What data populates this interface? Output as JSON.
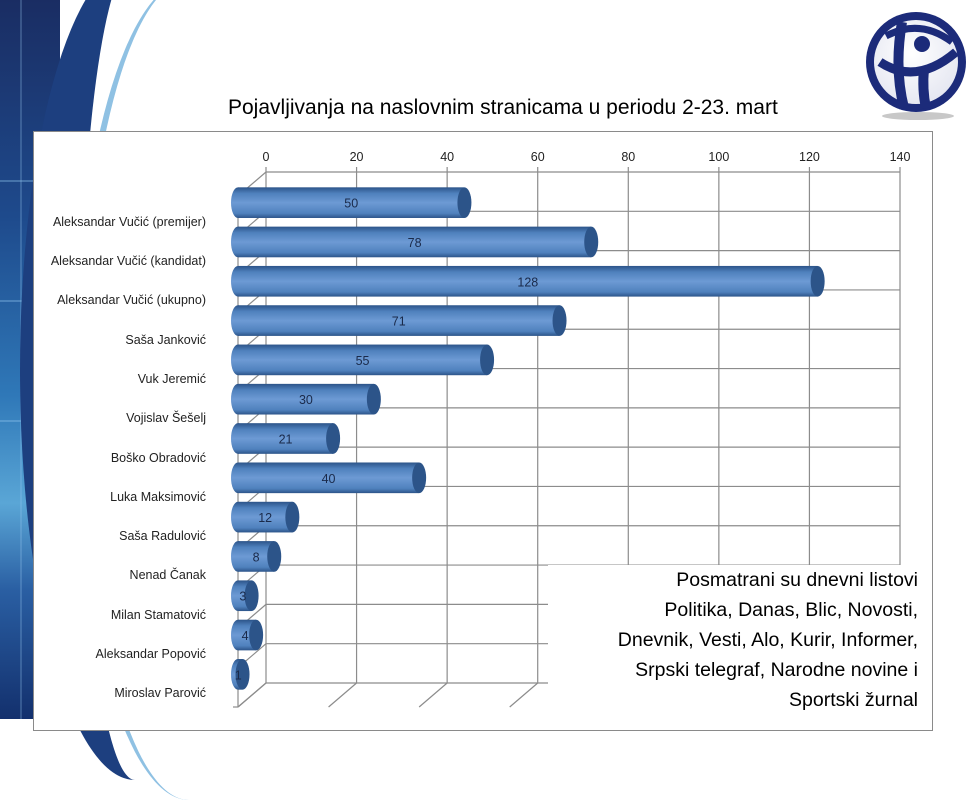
{
  "header": {
    "title": "Pojavljivanja na naslovnim stranicama u periodu 2-23. mart",
    "logo_icon": "transparency-globe-logo"
  },
  "note": {
    "lines": [
      "Posmatrani su dnevni listovi",
      "Politika, Danas, Blic, Novosti,",
      "Dnevnik, Vesti, Alo, Kurir, Informer,",
      "Srpski telegraf, Narodne novine i",
      "Sportski žurnal"
    ]
  },
  "colors": {
    "bar": "#4f81bd",
    "bar_dark": "#2c5489",
    "bar_light": "#6d9ad4",
    "grid": "#8c8c8c",
    "logo": "#1c2b7a"
  },
  "chart_data": {
    "type": "bar",
    "orientation": "horizontal",
    "style": "3d-cylinder",
    "title": "Pojavljivanja na naslovnim stranicama u periodu 2-23. mart",
    "xlabel": "",
    "ylabel": "",
    "xlim": [
      0,
      140
    ],
    "xticks": [
      0,
      20,
      40,
      60,
      80,
      100,
      120,
      140
    ],
    "xtick_position": "top",
    "grid": true,
    "legend": null,
    "data_labels": true,
    "categories": [
      "Aleksandar Vučić (premijer)",
      "Aleksandar Vučić (kandidat)",
      "Aleksandar Vučić (ukupno)",
      "Saša Janković",
      "Vuk Jeremić",
      "Vojislav Šešelj",
      "Boško Obradović",
      "Luka Maksimović",
      "Saša Radulović",
      "Nenad Čanak",
      "Milan Stamatović",
      "Aleksandar Popović",
      "Miroslav Parović"
    ],
    "values": [
      50,
      78,
      128,
      71,
      55,
      30,
      21,
      40,
      12,
      8,
      3,
      4,
      1
    ],
    "annotation": "Posmatrani su dnevni listovi Politika, Danas, Blic, Novosti, Dnevnik, Vesti, Alo, Kurir, Informer, Srpski telegraf, Narodne novine i Sportski žurnal"
  }
}
